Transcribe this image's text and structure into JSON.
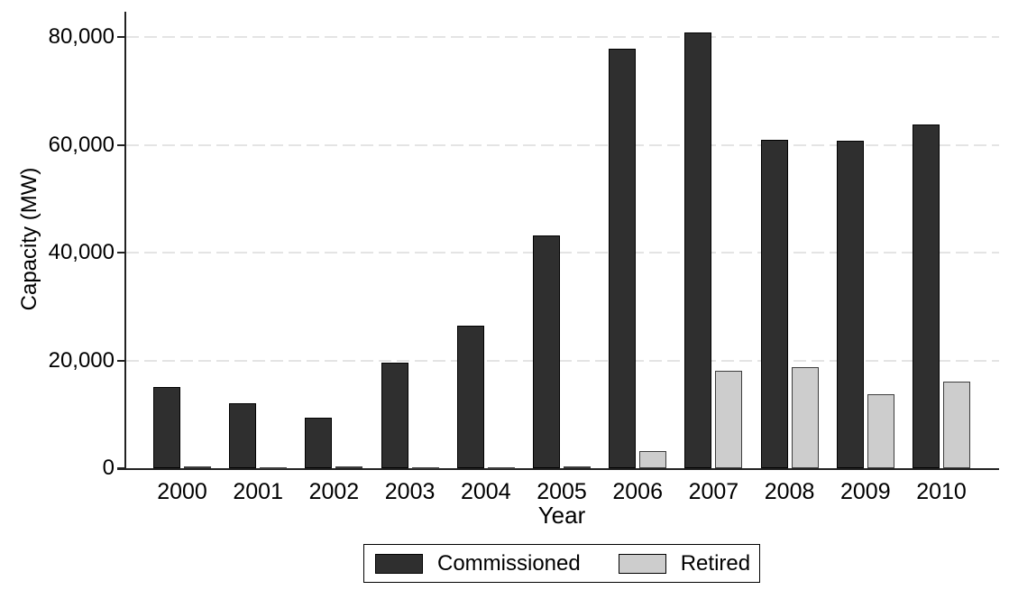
{
  "chart_data": {
    "type": "bar",
    "title": "",
    "xlabel": "Year",
    "ylabel": "Capacity (MW)",
    "categories": [
      "2000",
      "2001",
      "2002",
      "2003",
      "2004",
      "2005",
      "2006",
      "2007",
      "2008",
      "2009",
      "2010"
    ],
    "series": [
      {
        "name": "Commissioned",
        "color": "#2f2f2f",
        "border_color": "#000000",
        "values": [
          15100,
          12000,
          9400,
          19500,
          26400,
          43200,
          77900,
          80800,
          61000,
          60700,
          63800
        ]
      },
      {
        "name": "Retired",
        "color": "#cdcdcd",
        "border_color": "#3d3d3d",
        "values": [
          400,
          250,
          400,
          50,
          200,
          300,
          3100,
          18000,
          18700,
          13800,
          16000
        ]
      }
    ],
    "ylim": [
      0,
      85000
    ],
    "yticks": [
      0,
      20000,
      40000,
      60000,
      80000
    ],
    "ytick_labels": [
      "0",
      "20,000",
      "40,000",
      "60,000",
      "80,000"
    ],
    "grid": "horizontal-dashed",
    "legend_position": "bottom-center",
    "colors": {
      "axis": "#222222",
      "grid": "#e4e4e4",
      "text": "#000000",
      "background": "#ffffff"
    }
  }
}
